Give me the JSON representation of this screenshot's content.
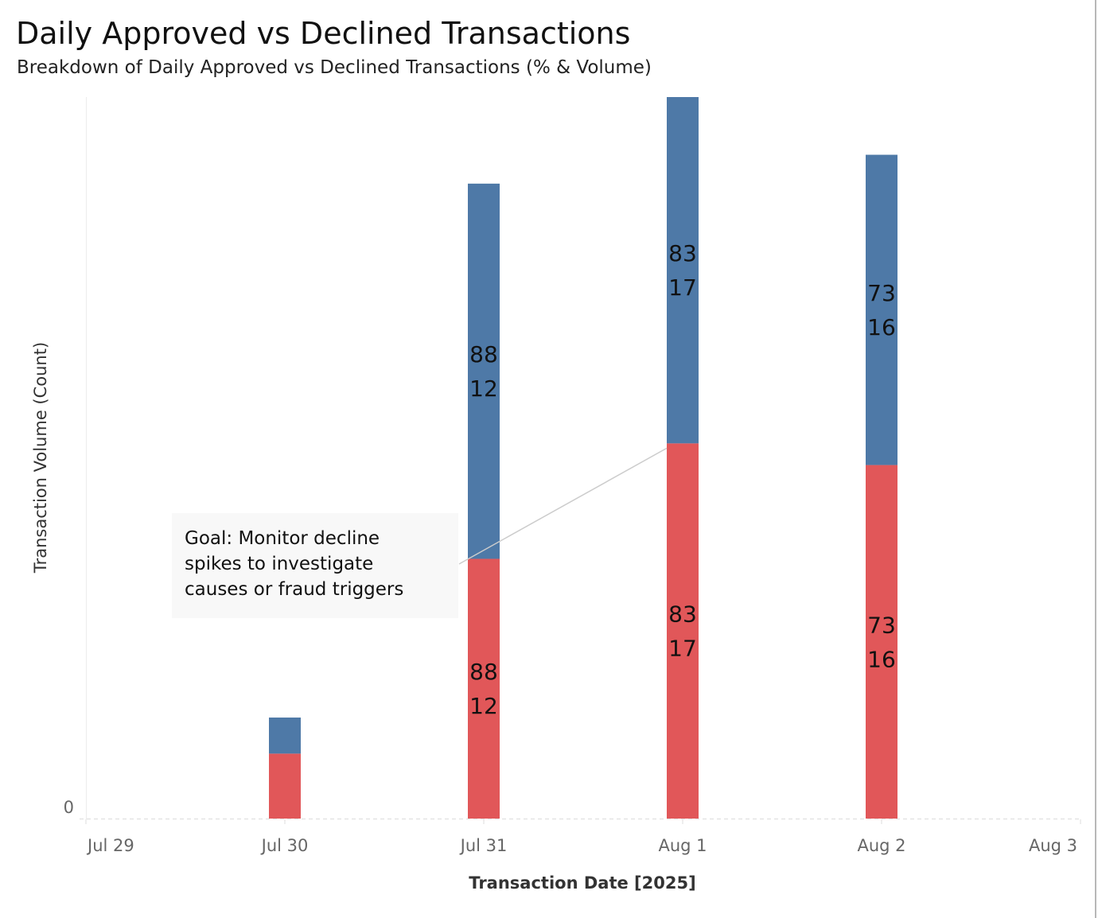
{
  "chart_data": {
    "type": "bar",
    "stacked": true,
    "title": "Daily Approved vs Declined Transactions",
    "subtitle": "Breakdown of Daily Approved vs Declined Transactions (% & Volume)",
    "xlabel": "Transaction Date [2025]",
    "ylabel": "Transaction Volume (Count)",
    "x_ticks": [
      "Jul 29",
      "Jul 30",
      "Jul 31",
      "Aug 1",
      "Aug 2",
      "Aug 3"
    ],
    "y_ticks": [
      "0"
    ],
    "ylim": [
      0,
      100
    ],
    "grid": false,
    "legend": "none",
    "categories": [
      "Jul 30",
      "Jul 31",
      "Aug 1",
      "Aug 2"
    ],
    "series": [
      {
        "color": "#e15759",
        "values": [
          9,
          36,
          52,
          49
        ]
      },
      {
        "color": "#4e79a7",
        "values": [
          5,
          52,
          48,
          43
        ]
      }
    ],
    "data_labels": [
      {
        "category": "Jul 30",
        "lower": [],
        "upper": []
      },
      {
        "category": "Jul 31",
        "lower": [
          "88",
          "12"
        ],
        "upper": [
          "88",
          "12"
        ]
      },
      {
        "category": "Aug 1",
        "lower": [
          "83",
          "17"
        ],
        "upper": [
          "83",
          "17"
        ]
      },
      {
        "category": "Aug 2",
        "lower": [
          "73",
          "16"
        ],
        "upper": [
          "73",
          "16"
        ]
      }
    ],
    "annotation": {
      "lines": [
        "Goal: Monitor decline",
        "spikes to investigate",
        "causes or fraud triggers"
      ],
      "points_to": "Aug 1"
    }
  }
}
